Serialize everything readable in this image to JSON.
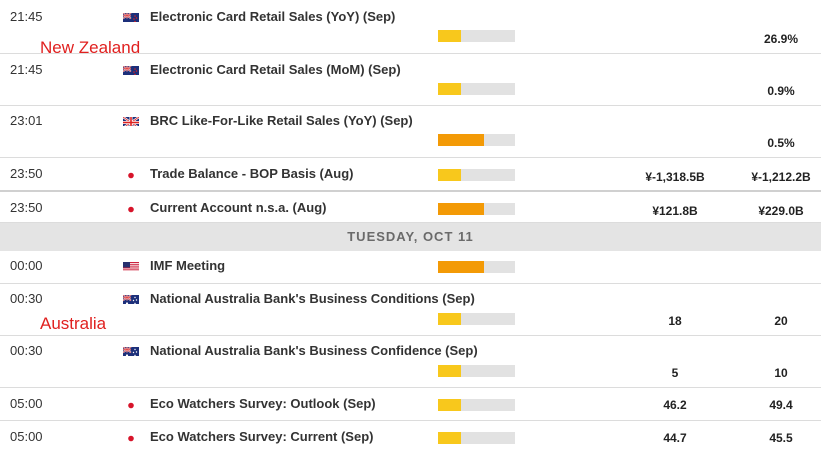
{
  "region_labels": {
    "new_zealand": "New Zealand",
    "australia": "Australia"
  },
  "date_separator": "TUESDAY, OCT 11",
  "colors": {
    "impact_low": "#f8c81c",
    "impact_medium": "#f39a06",
    "impact_track": "#e2e2e2",
    "region_label": "#e0201f"
  },
  "events": [
    {
      "time": "21:45",
      "country": "NZ",
      "flag": "new-zealand-flag-icon",
      "title": "Electronic Card Retail Sales (YoY) (Sep)",
      "impact": "low",
      "impact_level": 0.3,
      "previous": "",
      "actual": "26.9%"
    },
    {
      "time": "21:45",
      "country": "NZ",
      "flag": "new-zealand-flag-icon",
      "title": "Electronic Card Retail Sales (MoM) (Sep)",
      "impact": "low",
      "impact_level": 0.3,
      "previous": "",
      "actual": "0.9%"
    },
    {
      "time": "23:01",
      "country": "GB",
      "flag": "uk-flag-icon",
      "title": "BRC Like-For-Like Retail Sales (YoY) (Sep)",
      "impact": "medium",
      "impact_level": 0.6,
      "previous": "",
      "actual": "0.5%"
    },
    {
      "time": "23:50",
      "country": "JP",
      "flag": "japan-flag-icon",
      "title": "Trade Balance - BOP Basis (Aug)",
      "impact": "low",
      "impact_level": 0.3,
      "previous": "¥-1,318.5B",
      "actual": "¥-1,212.2B"
    },
    {
      "time": "23:50",
      "country": "JP",
      "flag": "japan-flag-icon",
      "title": "Current Account n.s.a. (Aug)",
      "impact": "medium",
      "impact_level": 0.6,
      "previous": "¥121.8B",
      "actual": "¥229.0B"
    },
    {
      "time": "00:00",
      "country": "US",
      "flag": "usa-flag-icon",
      "title": "IMF Meeting",
      "impact": "medium",
      "impact_level": 0.6,
      "previous": "",
      "actual": ""
    },
    {
      "time": "00:30",
      "country": "AU",
      "flag": "australia-flag-icon",
      "title": "National Australia Bank's Business Conditions (Sep)",
      "impact": "low",
      "impact_level": 0.3,
      "previous": "18",
      "actual": "20"
    },
    {
      "time": "00:30",
      "country": "AU",
      "flag": "australia-flag-icon",
      "title": "National Australia Bank's Business Confidence (Sep)",
      "impact": "low",
      "impact_level": 0.3,
      "previous": "5",
      "actual": "10"
    },
    {
      "time": "05:00",
      "country": "JP",
      "flag": "japan-flag-icon",
      "title": "Eco Watchers Survey: Outlook (Sep)",
      "impact": "low",
      "impact_level": 0.3,
      "previous": "46.2",
      "actual": "49.4"
    },
    {
      "time": "05:00",
      "country": "JP",
      "flag": "japan-flag-icon",
      "title": "Eco Watchers Survey: Current (Sep)",
      "impact": "low",
      "impact_level": 0.3,
      "previous": "44.7",
      "actual": "45.5"
    }
  ]
}
